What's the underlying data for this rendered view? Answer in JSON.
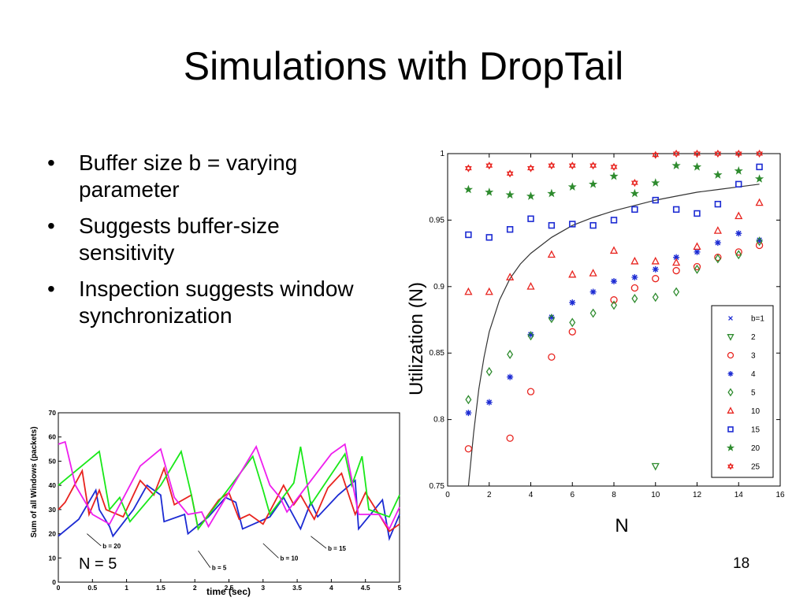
{
  "slide": {
    "title": "Simulations with DropTail",
    "bullets": [
      "Buffer size b = varying parameter",
      "Suggests buffer-size sensitivity",
      "Inspection suggests window synchronization"
    ],
    "page_number": "18"
  },
  "colors": {
    "red": "#e8231e",
    "green": "#19e819",
    "blue": "#1c2bd3",
    "magenta": "#ee1eee",
    "dark_green": "#2e8b2e"
  },
  "chart_data": [
    {
      "type": "scatter",
      "title": "",
      "xlabel": "N",
      "ylabel": "Utilization (N)",
      "xlim": [
        0,
        16
      ],
      "ylim": [
        0.75,
        1
      ],
      "xticks": [
        "0",
        "2",
        "4",
        "6",
        "8",
        "10",
        "12",
        "14",
        "16"
      ],
      "yticks": [
        "0.75",
        "0.8",
        "0.85",
        "0.9",
        "0.95",
        "1"
      ],
      "legend_placement": "bottom-right",
      "series": [
        {
          "name": "b=1",
          "marker": "x",
          "color": "#1c2bd3",
          "x": [
            1,
            2,
            3,
            4,
            5,
            6,
            7,
            8,
            9,
            10,
            11,
            12,
            13,
            14,
            15
          ],
          "y": [
            0.805,
            0.813,
            0.832,
            0.864,
            0.877,
            0.888,
            0.896,
            0.904,
            0.907,
            0.913,
            0.922,
            0.926,
            0.933,
            0.94,
            0.935
          ]
        },
        {
          "name": "2",
          "marker": "triangle-down",
          "color": "#2e8b2e",
          "x": [
            10
          ],
          "y": [
            0.765
          ]
        },
        {
          "name": "3",
          "marker": "circle",
          "color": "#e8231e",
          "x": [
            1,
            3,
            4,
            5,
            6,
            8,
            9,
            10,
            11,
            12,
            13,
            14,
            15
          ],
          "y": [
            0.778,
            0.786,
            0.821,
            0.847,
            0.866,
            0.89,
            0.899,
            0.906,
            0.912,
            0.915,
            0.922,
            0.926,
            0.931
          ]
        },
        {
          "name": "4",
          "marker": "asterisk",
          "color": "#1c2bd3",
          "x": [
            1,
            2,
            3,
            4,
            5,
            6,
            7,
            8,
            9,
            10,
            11,
            12,
            13,
            14,
            15
          ],
          "y": [
            0.805,
            0.813,
            0.832,
            0.864,
            0.877,
            0.888,
            0.896,
            0.904,
            0.907,
            0.913,
            0.922,
            0.926,
            0.933,
            0.94,
            0.935
          ]
        },
        {
          "name": "5",
          "marker": "diamond",
          "color": "#2e8b2e",
          "x": [
            1,
            2,
            3,
            4,
            5,
            6,
            7,
            8,
            9,
            10,
            11,
            12,
            13,
            14,
            15
          ],
          "y": [
            0.815,
            0.836,
            0.849,
            0.863,
            0.876,
            0.873,
            0.88,
            0.886,
            0.891,
            0.892,
            0.896,
            0.913,
            0.921,
            0.924,
            0.934
          ]
        },
        {
          "name": "10",
          "marker": "triangle-up",
          "color": "#e8231e",
          "x": [
            1,
            2,
            3,
            4,
            5,
            6,
            7,
            8,
            9,
            10,
            11,
            12,
            13,
            14,
            15
          ],
          "y": [
            0.896,
            0.896,
            0.907,
            0.9,
            0.924,
            0.909,
            0.91,
            0.927,
            0.919,
            0.919,
            0.918,
            0.93,
            0.942,
            0.953,
            0.963
          ]
        },
        {
          "name": "15",
          "marker": "square",
          "color": "#1c2bd3",
          "x": [
            1,
            2,
            3,
            4,
            5,
            6,
            7,
            8,
            9,
            10,
            11,
            12,
            13,
            14,
            15
          ],
          "y": [
            0.939,
            0.937,
            0.943,
            0.951,
            0.946,
            0.947,
            0.946,
            0.95,
            0.958,
            0.965,
            0.958,
            0.955,
            0.962,
            0.977,
            0.99
          ]
        },
        {
          "name": "20",
          "marker": "star",
          "color": "#2e8b2e",
          "x": [
            1,
            2,
            3,
            4,
            5,
            6,
            7,
            8,
            9,
            10,
            11,
            12,
            13,
            14,
            15
          ],
          "y": [
            0.973,
            0.971,
            0.969,
            0.968,
            0.97,
            0.975,
            0.977,
            0.983,
            0.97,
            0.978,
            0.991,
            0.99,
            0.984,
            0.987,
            0.981
          ]
        },
        {
          "name": "25",
          "marker": "hexagram",
          "color": "#e8231e",
          "x": [
            1,
            2,
            3,
            4,
            5,
            6,
            7,
            8,
            9,
            10,
            11,
            12,
            13,
            14,
            15
          ],
          "y": [
            0.989,
            0.991,
            0.985,
            0.989,
            0.991,
            0.991,
            0.991,
            0.99,
            0.978,
            0.999,
            1.0,
            1.0,
            1.0,
            1.0,
            1.0
          ]
        }
      ],
      "curve": {
        "x": [
          1,
          1.25,
          1.5,
          1.75,
          2,
          2.5,
          3,
          3.5,
          4,
          5,
          6,
          7,
          8,
          9,
          10,
          11,
          12,
          13,
          14,
          15
        ],
        "y": [
          0.75,
          0.79,
          0.823,
          0.847,
          0.866,
          0.89,
          0.906,
          0.917,
          0.925,
          0.937,
          0.946,
          0.952,
          0.957,
          0.961,
          0.965,
          0.968,
          0.971,
          0.973,
          0.975,
          0.977
        ]
      }
    },
    {
      "type": "line",
      "title": "",
      "xlabel": "time (sec)",
      "ylabel": "Sum of all Windows (packets)",
      "xlim": [
        0,
        5
      ],
      "ylim": [
        0,
        70
      ],
      "xticks": [
        "0",
        "0.5",
        "1",
        "1.5",
        "2",
        "2.5",
        "3",
        "3.5",
        "4",
        "4.5",
        "5"
      ],
      "yticks": [
        "0",
        "10",
        "20",
        "30",
        "40",
        "50",
        "60",
        "70"
      ],
      "annotation_text": "N = 5",
      "series": [
        {
          "name": "b = 20",
          "color": "#1c2bd3",
          "x": [
            0,
            0.3,
            0.55,
            0.6,
            0.75,
            0.8,
            1.1,
            1.3,
            1.5,
            1.55,
            1.85,
            1.9,
            2.2,
            2.45,
            2.6,
            2.7,
            3.1,
            3.3,
            3.55,
            3.7,
            3.8,
            4.1,
            4.35,
            4.4,
            4.75,
            4.85,
            5
          ],
          "y": [
            19,
            26,
            38,
            30,
            23,
            19,
            30,
            40,
            36,
            25,
            28,
            20,
            27,
            35,
            33,
            22,
            27,
            35,
            22,
            33,
            27,
            36,
            42,
            22,
            34,
            18,
            28
          ]
        },
        {
          "name": "b = 5",
          "color": "#e8231e",
          "x": [
            0,
            0.1,
            0.35,
            0.45,
            0.6,
            0.7,
            0.95,
            1.2,
            1.4,
            1.55,
            1.7,
            1.95,
            2.05,
            2.35,
            2.5,
            2.65,
            2.8,
            3.0,
            3.3,
            3.45,
            3.55,
            3.75,
            3.95,
            4.15,
            4.35,
            4.5,
            4.7,
            4.85,
            5
          ],
          "y": [
            30,
            33,
            46,
            28,
            38,
            30,
            27,
            42,
            36,
            47,
            32,
            36,
            22,
            34,
            37,
            26,
            28,
            24,
            40,
            32,
            36,
            26,
            39,
            45,
            28,
            37,
            28,
            21,
            24
          ]
        },
        {
          "name": "b = 10",
          "color": "#19e819",
          "x": [
            0,
            0.6,
            0.75,
            0.9,
            1.05,
            1.5,
            1.8,
            1.95,
            2.05,
            2.45,
            2.85,
            3.0,
            3.1,
            3.45,
            3.55,
            3.7,
            4.2,
            4.3,
            4.45,
            4.55,
            4.85,
            5
          ],
          "y": [
            40,
            54,
            30,
            35,
            25,
            40,
            54,
            36,
            22,
            37,
            52,
            38,
            28,
            41,
            56,
            32,
            53,
            40,
            52,
            30,
            27,
            36
          ]
        },
        {
          "name": "b = 15",
          "color": "#ee1eee",
          "x": [
            0,
            0.1,
            0.25,
            0.5,
            0.75,
            1.2,
            1.5,
            1.7,
            1.9,
            2.1,
            2.2,
            2.9,
            3.1,
            3.25,
            3.35,
            4.0,
            4.2,
            4.4,
            4.7,
            4.85,
            5
          ],
          "y": [
            57,
            58,
            40,
            28,
            24,
            48,
            55,
            35,
            28,
            29,
            23,
            56,
            40,
            35,
            29,
            53,
            57,
            28,
            28,
            22,
            31
          ]
        }
      ]
    }
  ]
}
